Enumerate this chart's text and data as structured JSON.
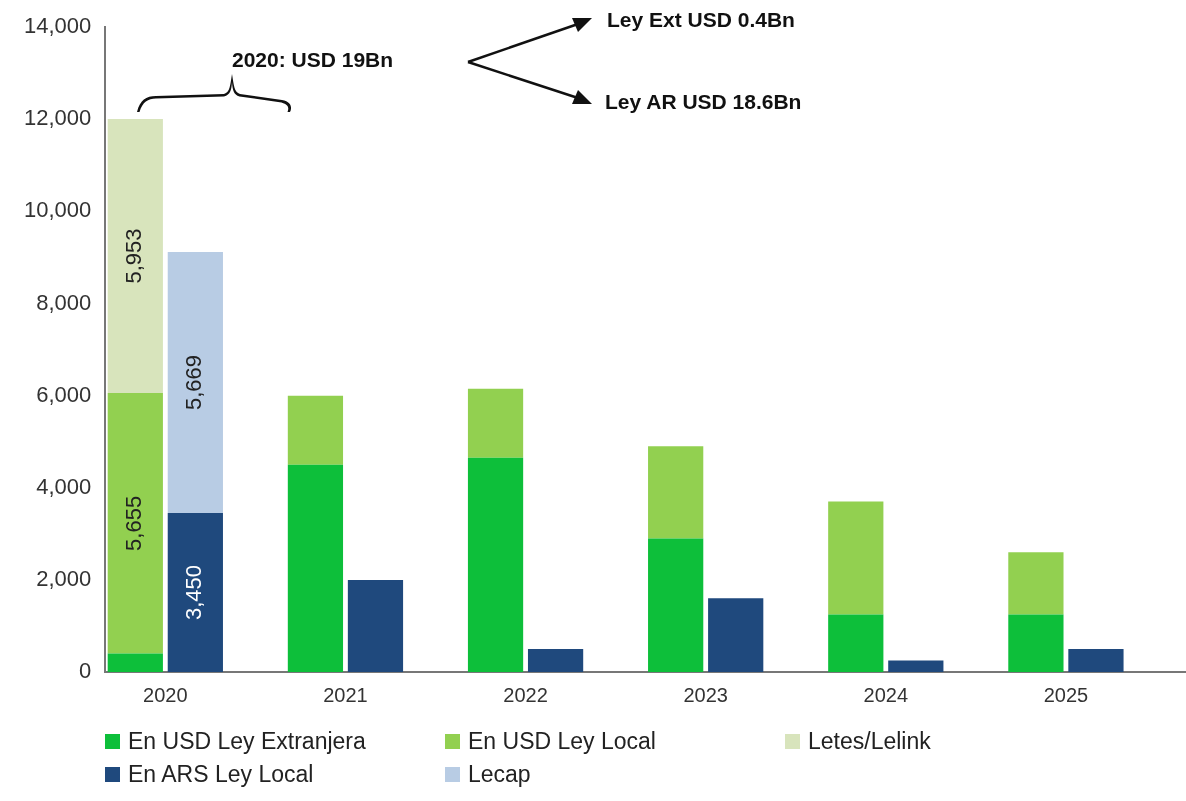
{
  "chart_data": {
    "type": "bar",
    "stacked": true,
    "categories": [
      "2020",
      null,
      null,
      "2021",
      null,
      null,
      "2022",
      null,
      null,
      "2023",
      null,
      null,
      "2024",
      null,
      null,
      "2025",
      null,
      null
    ],
    "series": [
      {
        "name": "En USD Ley Extranjera",
        "color": "#0dbf3a",
        "values": [
          400,
          null,
          null,
          4500,
          null,
          null,
          4650,
          null,
          null,
          2900,
          null,
          null,
          1250,
          null,
          null,
          1250,
          null,
          null
        ]
      },
      {
        "name": "En USD Ley Local",
        "color": "#92d050",
        "values": [
          5655,
          null,
          null,
          1500,
          null,
          null,
          1500,
          null,
          null,
          2000,
          null,
          null,
          2450,
          null,
          null,
          1350,
          null,
          null
        ],
        "value_labels": [
          "5,655",
          null,
          null,
          null,
          null,
          null,
          null,
          null,
          null,
          null,
          null,
          null,
          null,
          null,
          null,
          null,
          null,
          null
        ]
      },
      {
        "name": "Letes/Lelink",
        "color": "#d8e4bc",
        "values": [
          5953,
          null,
          null,
          null,
          null,
          null,
          null,
          null,
          null,
          null,
          null,
          null,
          null,
          null,
          null,
          null,
          null,
          null
        ],
        "value_labels": [
          "5,953",
          null,
          null,
          null,
          null,
          null,
          null,
          null,
          null,
          null,
          null,
          null,
          null,
          null,
          null,
          null,
          null,
          null
        ]
      },
      {
        "name": "En ARS Ley Local",
        "color": "#1f497d",
        "values": [
          null,
          3450,
          null,
          null,
          2000,
          null,
          null,
          500,
          null,
          null,
          1600,
          null,
          null,
          250,
          null,
          null,
          500,
          null
        ],
        "value_labels": [
          null,
          "3,450",
          null,
          null,
          null,
          null,
          null,
          null,
          null,
          null,
          null,
          null,
          null,
          null,
          null,
          null,
          null,
          null
        ]
      },
      {
        "name": "Lecap",
        "color": "#b8cce4",
        "values": [
          null,
          5669,
          null,
          null,
          null,
          null,
          null,
          null,
          null,
          null,
          null,
          null,
          null,
          null,
          null,
          null,
          null,
          null
        ],
        "value_labels": [
          null,
          "5,669",
          null,
          null,
          null,
          null,
          null,
          null,
          null,
          null,
          null,
          null,
          null,
          null,
          null,
          null,
          null,
          null
        ]
      }
    ],
    "ylim": [
      0,
      14000
    ],
    "yticks": [
      {
        "value": 0,
        "label": "0"
      },
      {
        "value": 2000,
        "label": "2,000"
      },
      {
        "value": 4000,
        "label": "4,000"
      },
      {
        "value": 6000,
        "label": "6,000"
      },
      {
        "value": 8000,
        "label": "8,000"
      },
      {
        "value": 10000,
        "label": "10,000"
      },
      {
        "value": 12000,
        "label": "12,000"
      },
      {
        "value": 14000,
        "label": "14,000"
      }
    ],
    "grid": false,
    "legend": "bottom",
    "annotations": [
      "2020: USD 19Bn",
      "Ley Ext USD 0.4Bn",
      "Ley AR USD 18.6Bn"
    ]
  }
}
